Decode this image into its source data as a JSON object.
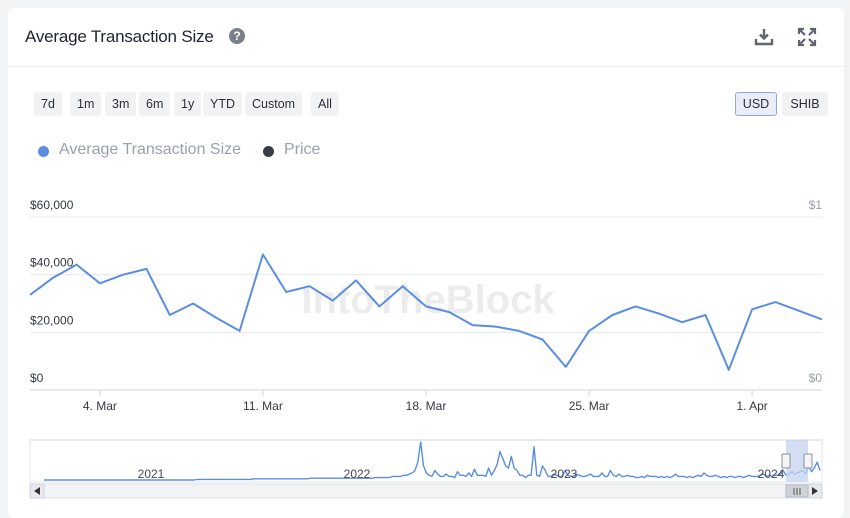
{
  "header": {
    "title": "Average Transaction Size",
    "help_icon": "question-circle-icon",
    "download_icon": "download-icon",
    "fullscreen_icon": "expand-icon"
  },
  "range_buttons": [
    "7d",
    "1m",
    "3m",
    "6m",
    "1y",
    "YTD",
    "Custom",
    "All"
  ],
  "currency_buttons": {
    "usd": "USD",
    "shib": "SHIB",
    "selected": "USD"
  },
  "watermark": "IntoTheBlock",
  "colors": {
    "series": "#5b8ee0",
    "price": "#3a3d44",
    "grid": "#e6e8ec",
    "axis_text": "#333840"
  },
  "chart_data": {
    "type": "line",
    "legend": [
      {
        "name": "Average Transaction Size",
        "color": "#5b8ee0"
      },
      {
        "name": "Price",
        "color": "#3a3d44"
      }
    ],
    "x_tick_labels": [
      "4. Mar",
      "11. Mar",
      "18. Mar",
      "25. Mar",
      "1. Apr"
    ],
    "y_left_ticks": [
      "$0",
      "$20,000",
      "$40,000",
      "$60,000"
    ],
    "y_right_ticks": [
      "$0",
      "$1"
    ],
    "ylim": [
      0,
      60000
    ],
    "grid": true,
    "series": [
      {
        "name": "Average Transaction Size",
        "x": [
          "2024-03-01",
          "2024-03-02",
          "2024-03-03",
          "2024-03-04",
          "2024-03-05",
          "2024-03-06",
          "2024-03-07",
          "2024-03-08",
          "2024-03-09",
          "2024-03-10",
          "2024-03-11",
          "2024-03-12",
          "2024-03-13",
          "2024-03-14",
          "2024-03-15",
          "2024-03-16",
          "2024-03-17",
          "2024-03-18",
          "2024-03-19",
          "2024-03-20",
          "2024-03-21",
          "2024-03-22",
          "2024-03-23",
          "2024-03-24",
          "2024-03-25",
          "2024-03-26",
          "2024-03-27",
          "2024-03-28",
          "2024-03-29",
          "2024-03-30",
          "2024-03-31",
          "2024-04-01",
          "2024-04-02",
          "2024-04-03",
          "2024-04-04"
        ],
        "values": [
          33000,
          39000,
          43500,
          37000,
          40000,
          42000,
          26000,
          30000,
          25000,
          20500,
          47000,
          34000,
          36000,
          31000,
          38000,
          29000,
          36000,
          29000,
          27000,
          22500,
          22000,
          20500,
          17500,
          8000,
          20500,
          26000,
          29000,
          26500,
          23500,
          26000,
          7000,
          28000,
          30500,
          27500,
          24500
        ]
      },
      {
        "name": "Price",
        "values": []
      }
    ],
    "navigator": {
      "year_labels": [
        "2021",
        "2022",
        "2023",
        "2024"
      ],
      "values": [
        0,
        0,
        0,
        0,
        0,
        0,
        0,
        0,
        0,
        0,
        0,
        0,
        0,
        0,
        0,
        0,
        0,
        0,
        0,
        0,
        0,
        0,
        0,
        0,
        0,
        0,
        0,
        0,
        0,
        0,
        0,
        0,
        0,
        0,
        0,
        0,
        0,
        0,
        0,
        0,
        0,
        0,
        0,
        0,
        0,
        0,
        0,
        0,
        0,
        0,
        0,
        0,
        0,
        0,
        0.5,
        0.5,
        0.5,
        0.5,
        0.5,
        0.5,
        0.5,
        0.5,
        0.5,
        0.5,
        0.5,
        0.5,
        0.5,
        0.5,
        0.5,
        0.5,
        0.5,
        0.5,
        0.5,
        0.5,
        1,
        1,
        1,
        1,
        1,
        1,
        1,
        1,
        1,
        1,
        1,
        1,
        1,
        1,
        1,
        1,
        1,
        1,
        1,
        1,
        1.5,
        1.5,
        1.5,
        1.5,
        1.5,
        1.5,
        1.5,
        1.5,
        1.5,
        1.5,
        1.5,
        1.5,
        1.5,
        1.5,
        1.5,
        1.5,
        1.5,
        1.5,
        1.5,
        1.5,
        1.5,
        1.5,
        1.5,
        2,
        2,
        2,
        2,
        2,
        2,
        3,
        3,
        3,
        3,
        4,
        4,
        5,
        6,
        8,
        15,
        32,
        12,
        6,
        4,
        3,
        8,
        5,
        3,
        3,
        5,
        3,
        3,
        2,
        7,
        4,
        4,
        3,
        6,
        3,
        9,
        4,
        4,
        4,
        3,
        10,
        4,
        8,
        13,
        24,
        18,
        12,
        10,
        20,
        10,
        8,
        4,
        4,
        2,
        4,
        4,
        28,
        4,
        3,
        12,
        8,
        3,
        3,
        5,
        4,
        3,
        3,
        8,
        4,
        3,
        3,
        5,
        4,
        3,
        3,
        4,
        5,
        3,
        3,
        3,
        6,
        3,
        3,
        8,
        4,
        3,
        5,
        3,
        3,
        4,
        3,
        3,
        2,
        2,
        3,
        2,
        4,
        3,
        3,
        3,
        2,
        3,
        2,
        3,
        2,
        3,
        5,
        3,
        3,
        3,
        2,
        3,
        2,
        3,
        4,
        3,
        6,
        4,
        3,
        3,
        4,
        3,
        2,
        3,
        2,
        3,
        3,
        2,
        3,
        3,
        2,
        3,
        4,
        3,
        3,
        3,
        4,
        5,
        3,
        4,
        3,
        4,
        4,
        5,
        8,
        4,
        5,
        7,
        5,
        6,
        7,
        8,
        5,
        12,
        7,
        10,
        15,
        8
      ]
    }
  }
}
